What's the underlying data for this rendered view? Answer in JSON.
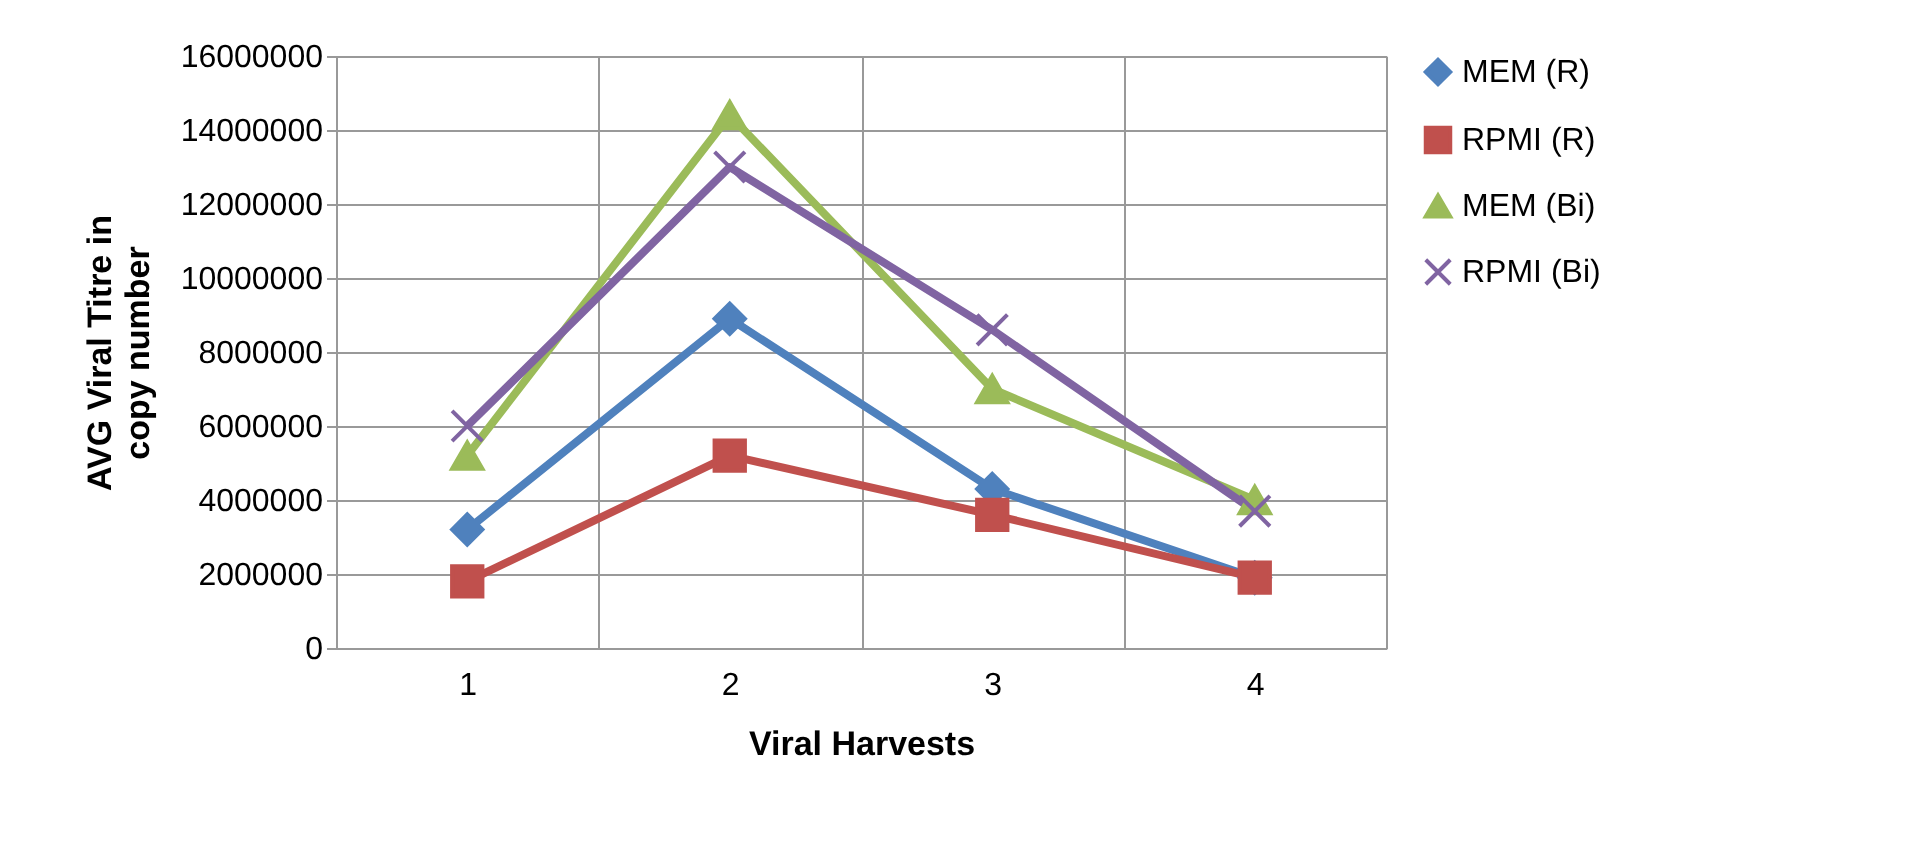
{
  "chart_data": {
    "type": "line",
    "xlabel": "Viral Harvests",
    "ylabel": "AVG Viral Titre in copy number",
    "categories": [
      "1",
      "2",
      "3",
      "4"
    ],
    "series": [
      {
        "name": "MEM (R)",
        "color": "#4f81bd",
        "marker": "diamond",
        "values": [
          3200000,
          8900000,
          4300000,
          1900000
        ]
      },
      {
        "name": "RPMI (R)",
        "color": "#c0504d",
        "marker": "square",
        "values": [
          1800000,
          5200000,
          3600000,
          1900000
        ]
      },
      {
        "name": "MEM (Bi)",
        "color": "#9bbb59",
        "marker": "triangle",
        "values": [
          5200000,
          14400000,
          7000000,
          4000000
        ]
      },
      {
        "name": "RPMI (Bi)",
        "color": "#8064a2",
        "marker": "cross",
        "values": [
          6000000,
          13000000,
          8600000,
          3700000
        ]
      }
    ],
    "ylim": [
      0,
      16000000
    ],
    "yticks": [
      0,
      2000000,
      4000000,
      6000000,
      8000000,
      10000000,
      12000000,
      14000000,
      16000000
    ],
    "grid": true,
    "legend": "right",
    "line_style": "solid"
  }
}
